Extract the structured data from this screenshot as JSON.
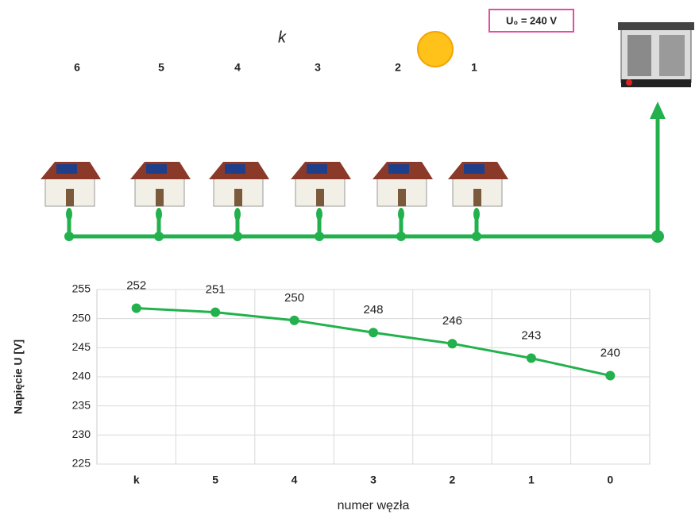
{
  "diagram": {
    "marker": "k",
    "source_label": "U₀ = 240 V",
    "nodes": [
      {
        "label": "6"
      },
      {
        "label": "5"
      },
      {
        "label": "4"
      },
      {
        "label": "3"
      },
      {
        "label": "2"
      },
      {
        "label": "1"
      }
    ]
  },
  "chart_data": {
    "type": "line",
    "y_label": "Napięcie U [V]",
    "x_label": "numer węzła",
    "categories": [
      "k",
      "5",
      "4",
      "3",
      "2",
      "1",
      "0"
    ],
    "values": [
      251.8,
      251.1,
      249.7,
      247.6,
      245.7,
      243.2,
      240.2
    ],
    "value_labels": [
      "252",
      "251",
      "250",
      "248",
      "246",
      "243",
      "240"
    ],
    "color": "#22b14c",
    "ylim": [
      225,
      255
    ],
    "yticks": [
      225,
      230,
      235,
      240,
      245,
      250,
      255
    ],
    "grid": true
  }
}
